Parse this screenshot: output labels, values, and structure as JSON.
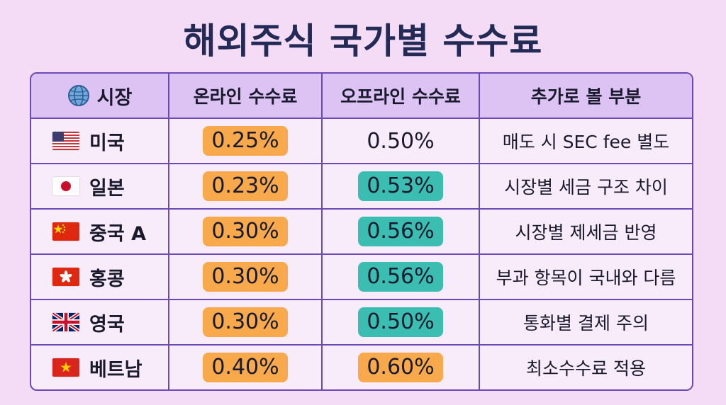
{
  "title": "해외주식 국가별 수수료",
  "headers": {
    "market": "시장",
    "online": "온라인 수수료",
    "offline": "오프라인 수수료",
    "extra": "추가로 볼 부분"
  },
  "colors": {
    "online_highlight": "#f7a94b",
    "offline_teal": "#3cbdb1",
    "offline_orange": "#f7a94b",
    "border": "#6c4ab6",
    "header_bg": "#dcc3f3"
  },
  "rows": [
    {
      "flag_icon": "us-flag-icon",
      "market": "미국",
      "online": "0.25%",
      "offline": "0.50%",
      "extra": "매도 시 SEC fee 별도"
    },
    {
      "flag_icon": "japan-flag-icon",
      "market": "일본",
      "online": "0.23%",
      "offline": "0.53%",
      "extra": "시장별 세금 구조 차이"
    },
    {
      "flag_icon": "china-flag-icon",
      "market": "중국 A",
      "online": "0.30%",
      "offline": "0.56%",
      "extra": "시장별 제세금 반영"
    },
    {
      "flag_icon": "hongkong-flag-icon",
      "market": "홍콩",
      "online": "0.30%",
      "offline": "0.56%",
      "extra": "부과 항목이 국내와 다름"
    },
    {
      "flag_icon": "uk-flag-icon",
      "market": "영국",
      "online": "0.30%",
      "offline": "0.50%",
      "extra": "통화별 결제 주의"
    },
    {
      "flag_icon": "vietnam-flag-icon",
      "market": "베트남",
      "online": "0.40%",
      "offline": "0.60%",
      "extra": "최소수수료 적용"
    }
  ]
}
